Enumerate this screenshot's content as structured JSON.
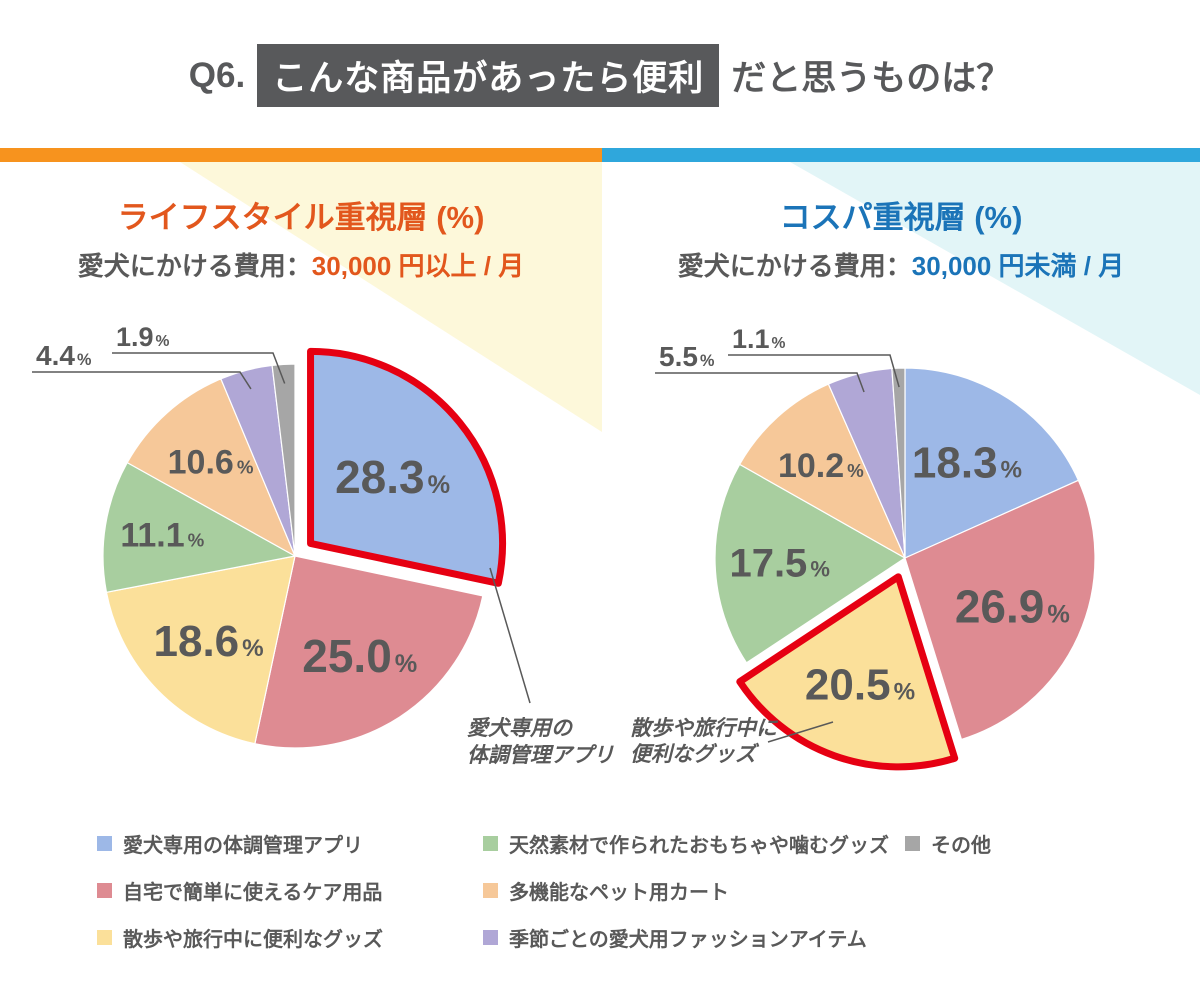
{
  "question": {
    "number": "Q6.",
    "highlight": "こんな商品があったら便利",
    "suffix": "だと思うものは？"
  },
  "palette": [
    "#9db8e7",
    "#de8b92",
    "#fbe09a",
    "#a8ce9f",
    "#f6c899",
    "#b0a7d6",
    "#a6a6a6"
  ],
  "highlight_stroke_color": "#e60012",
  "label_text_color": "#595959",
  "title_text_color": "#58595b",
  "title_box_color": "#58595b",
  "bars": {
    "left_color": "#f7931e",
    "right_color": "#2fa7dc"
  },
  "backgrounds": {
    "left_tint": "#fdf8da",
    "right_tint": "#e2f5f7"
  },
  "chart_data": [
    {
      "type": "pie",
      "title": "ライフスタイル重視層 (%)",
      "accent": "#e2571d",
      "subtitle_prefix": "愛犬にかける費用：",
      "subtitle_value": "30,000 円以上 / 月",
      "categories": [
        "愛犬専用の体調管理アプリ",
        "自宅で簡単に使えるケア用品",
        "散歩や旅行中に便利なグッズ",
        "天然素材で作られたおもちゃや噛むグッズ",
        "多機能なペット用カート",
        "季節ごとの愛犬用ファッションアイテム",
        "その他"
      ],
      "values": [
        28.3,
        25.0,
        18.6,
        11.1,
        10.6,
        4.4,
        1.9
      ],
      "value_labels": [
        "28.3",
        "25.0",
        "18.6",
        "11.1",
        "10.6",
        "4.4",
        "1.9"
      ],
      "unit": "%",
      "highlighted_index": 0,
      "highlighted_category": "愛犬専用の体調管理アプリ",
      "annotation_lines": [
        "愛犬専用の",
        "体調管理アプリ"
      ],
      "legend_position": "bottom",
      "start_angle": "top",
      "direction": "clockwise"
    },
    {
      "type": "pie",
      "title": "コスパ重視層 (%)",
      "accent": "#1b74b8",
      "subtitle_prefix": "愛犬にかける費用：",
      "subtitle_value": "30,000 円未満 / 月",
      "categories": [
        "愛犬専用の体調管理アプリ",
        "自宅で簡単に使えるケア用品",
        "散歩や旅行中に便利なグッズ",
        "天然素材で作られたおもちゃや噛むグッズ",
        "多機能なペット用カート",
        "季節ごとの愛犬用ファッションアイテム",
        "その他"
      ],
      "values": [
        18.3,
        26.9,
        20.5,
        17.5,
        10.2,
        5.5,
        1.1
      ],
      "value_labels": [
        "18.3",
        "26.9",
        "20.5",
        "17.5",
        "10.2",
        "5.5",
        "1.1"
      ],
      "unit": "%",
      "highlighted_index": 2,
      "highlighted_category": "散歩や旅行中に便利なグッズ",
      "annotation_lines": [
        "散歩や旅行中に",
        "便利なグッズ"
      ],
      "legend_position": "bottom",
      "start_angle": "top",
      "direction": "clockwise"
    }
  ],
  "legend": {
    "items": [
      {
        "label": "愛犬専用の体調管理アプリ",
        "color": "#9db8e7"
      },
      {
        "label": "自宅で簡単に使えるケア用品",
        "color": "#de8b92"
      },
      {
        "label": "散歩や旅行中に便利なグッズ",
        "color": "#fbe09a"
      },
      {
        "label": "天然素材で作られたおもちゃや噛むグッズ",
        "color": "#a8ce9f"
      },
      {
        "label": "多機能なペット用カート",
        "color": "#f6c899"
      },
      {
        "label": "季節ごとの愛犬用ファッションアイテム",
        "color": "#b0a7d6"
      },
      {
        "label": "その他",
        "color": "#a6a6a6"
      }
    ]
  }
}
